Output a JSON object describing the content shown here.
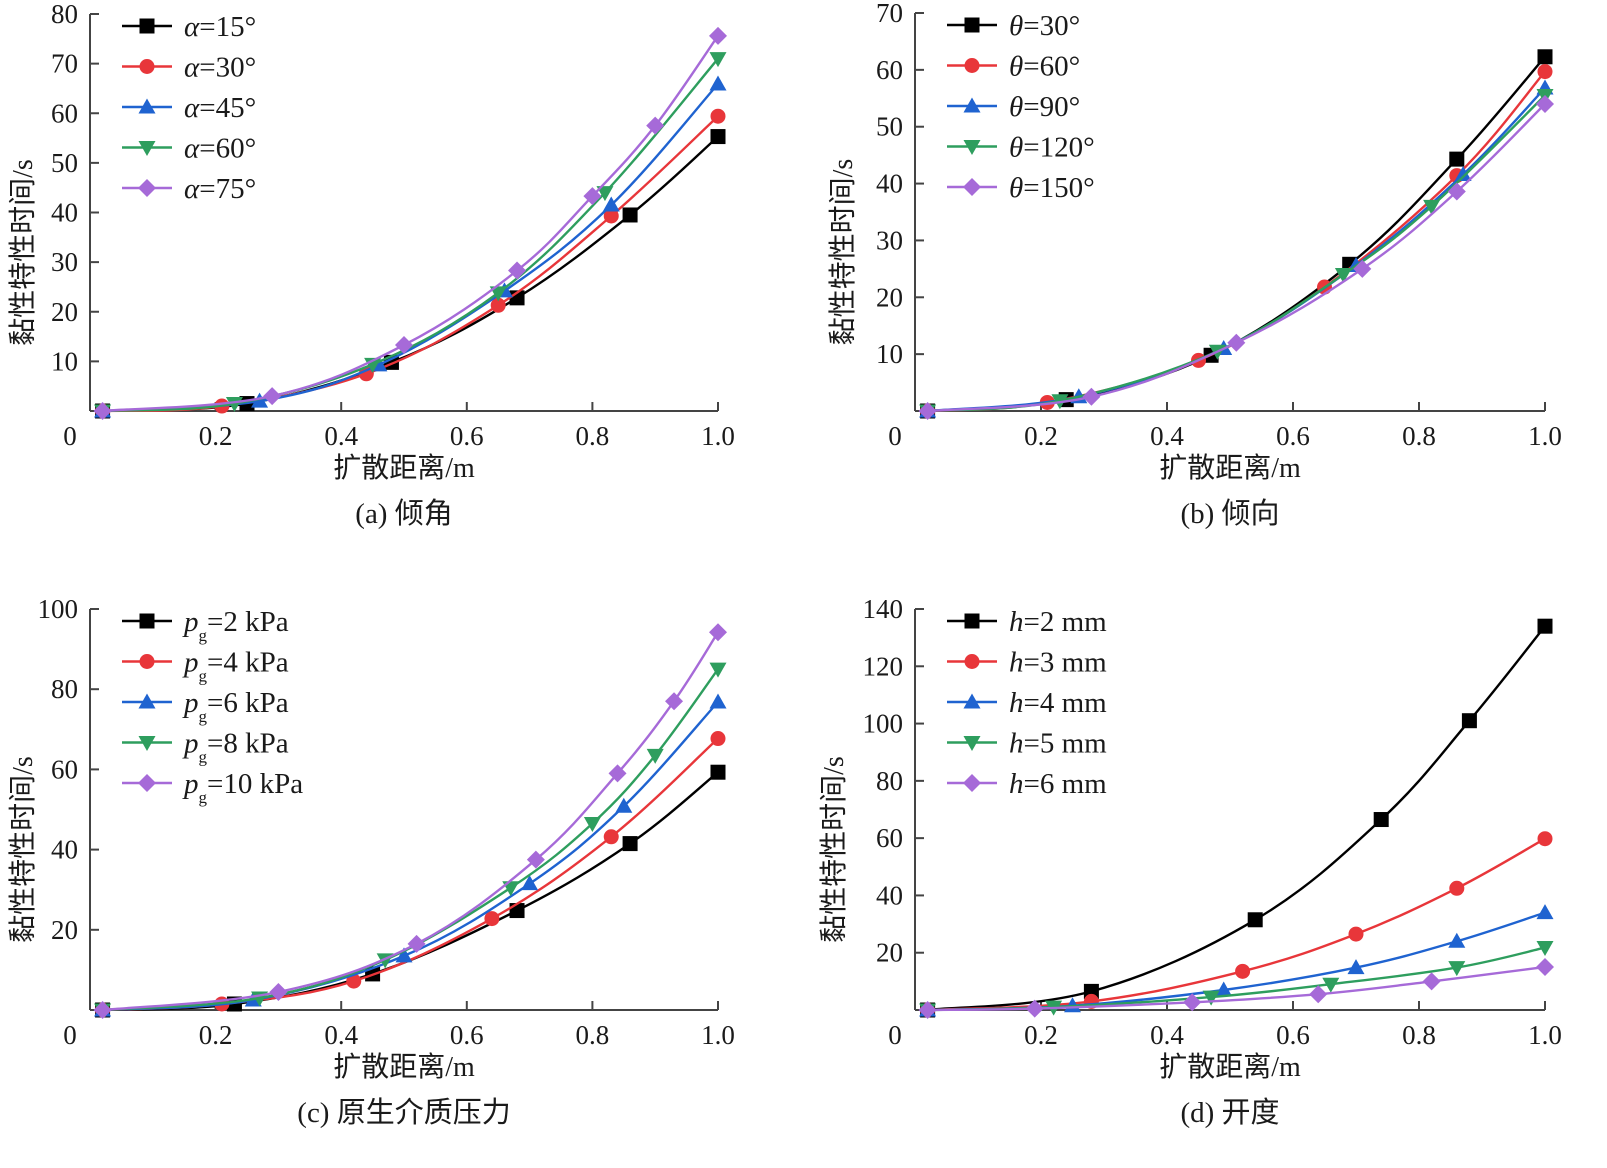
{
  "chart_data": [
    {
      "id": "a",
      "type": "line",
      "caption": "(a)  倾角",
      "xlabel": "扩散距离/m",
      "ylabel": "黏性特性时间/s",
      "xlim": [
        0,
        1.0
      ],
      "ylim": [
        0,
        80
      ],
      "xticks": [
        0,
        0.2,
        0.4,
        0.6,
        0.8,
        1.0
      ],
      "xtick_labels": [
        "0",
        "0.2",
        "0.4",
        "0.6",
        "0.8",
        "1.0"
      ],
      "yticks": [
        10,
        20,
        30,
        40,
        50,
        60,
        70,
        80
      ],
      "ytick_labels": [
        "10",
        "20",
        "30",
        "40",
        "50",
        "60",
        "70",
        "80"
      ],
      "grid": false,
      "legend_position": "top-left",
      "series": [
        {
          "name": "α=15°",
          "var": "α",
          "rest": "=15°",
          "sub": "",
          "color": "#000000",
          "marker": "square",
          "x": [
            0.02,
            0.25,
            0.48,
            0.68,
            0.86,
            1.0
          ],
          "y": [
            0,
            1.5,
            9.8,
            22.8,
            39.5,
            55.3
          ]
        },
        {
          "name": "α=30°",
          "var": "α",
          "rest": "=30°",
          "sub": "",
          "color": "#e8363a",
          "marker": "circle",
          "x": [
            0.02,
            0.21,
            0.44,
            0.65,
            0.83,
            1.0
          ],
          "y": [
            0,
            1.0,
            7.5,
            21.3,
            39.3,
            59.4
          ]
        },
        {
          "name": "α=45°",
          "var": "α",
          "rest": "=45°",
          "sub": "",
          "color": "#1f63d0",
          "marker": "triangle-up",
          "x": [
            0.02,
            0.27,
            0.46,
            0.66,
            0.83,
            1.0
          ],
          "y": [
            0,
            2.0,
            9.3,
            24.2,
            41.5,
            65.9
          ]
        },
        {
          "name": "α=60°",
          "var": "α",
          "rest": "=60°",
          "sub": "",
          "color": "#2e9e5e",
          "marker": "triangle-down",
          "x": [
            0.02,
            0.23,
            0.45,
            0.65,
            0.82,
            1.0
          ],
          "y": [
            0,
            1.5,
            9.4,
            23.8,
            44.0,
            71.0
          ]
        },
        {
          "name": "α=75°",
          "var": "α",
          "rest": "=75°",
          "sub": "",
          "color": "#a66ad8",
          "marker": "diamond",
          "x": [
            0.02,
            0.29,
            0.5,
            0.68,
            0.8,
            0.9,
            1.0
          ],
          "y": [
            0,
            3.0,
            13.3,
            28.3,
            43.3,
            57.5,
            75.6
          ]
        }
      ]
    },
    {
      "id": "b",
      "type": "line",
      "caption": "(b)  倾向",
      "xlabel": "扩散距离/m",
      "ylabel": "黏性特性时间/s",
      "xlim": [
        0,
        1.0
      ],
      "ylim": [
        0,
        70
      ],
      "xticks": [
        0,
        0.2,
        0.4,
        0.6,
        0.8,
        1.0
      ],
      "xtick_labels": [
        "0",
        "0.2",
        "0.4",
        "0.6",
        "0.8",
        "1.0"
      ],
      "yticks": [
        10,
        20,
        30,
        40,
        50,
        60,
        70
      ],
      "ytick_labels": [
        "10",
        "20",
        "30",
        "40",
        "50",
        "60",
        "70"
      ],
      "grid": false,
      "legend_position": "top-left",
      "series": [
        {
          "name": "θ=30°",
          "var": "θ",
          "rest": "=30°",
          "sub": "",
          "color": "#000000",
          "marker": "square",
          "x": [
            0.02,
            0.24,
            0.47,
            0.69,
            0.86,
            1.0
          ],
          "y": [
            0,
            2.0,
            9.8,
            25.8,
            44.3,
            62.3
          ]
        },
        {
          "name": "θ=60°",
          "var": "θ",
          "rest": "=60°",
          "sub": "",
          "color": "#e8363a",
          "marker": "circle",
          "x": [
            0.02,
            0.21,
            0.45,
            0.65,
            0.86,
            1.0
          ],
          "y": [
            0,
            1.5,
            8.9,
            21.8,
            41.4,
            59.7
          ]
        },
        {
          "name": "θ=90°",
          "var": "θ",
          "rest": "=90°",
          "sub": "",
          "color": "#1f63d0",
          "marker": "triangle-up",
          "x": [
            0.02,
            0.26,
            0.49,
            0.7,
            0.87,
            1.0
          ],
          "y": [
            0,
            2.5,
            11.0,
            25.6,
            41.6,
            56.8
          ]
        },
        {
          "name": "θ=120°",
          "var": "θ",
          "rest": "=120°",
          "sub": "",
          "color": "#2e9e5e",
          "marker": "triangle-down",
          "x": [
            0.02,
            0.23,
            0.48,
            0.68,
            0.82,
            1.0
          ],
          "y": [
            0,
            1.8,
            10.5,
            24.0,
            36.0,
            55.5
          ]
        },
        {
          "name": "θ=150°",
          "var": "θ",
          "rest": "=150°",
          "sub": "",
          "color": "#a66ad8",
          "marker": "diamond",
          "x": [
            0.02,
            0.28,
            0.51,
            0.71,
            0.86,
            1.0
          ],
          "y": [
            0,
            2.5,
            12.0,
            25.0,
            38.6,
            54.0
          ]
        }
      ]
    },
    {
      "id": "c",
      "type": "line",
      "caption": "(c)  原生介质压力",
      "xlabel": "扩散距离/m",
      "ylabel": "黏性特性时间/s",
      "xlim": [
        0,
        1.0
      ],
      "ylim": [
        0,
        100
      ],
      "xticks": [
        0,
        0.2,
        0.4,
        0.6,
        0.8,
        1.0
      ],
      "xtick_labels": [
        "0",
        "0.2",
        "0.4",
        "0.6",
        "0.8",
        "1.0"
      ],
      "yticks": [
        20,
        40,
        60,
        80,
        100
      ],
      "ytick_labels": [
        "20",
        "40",
        "60",
        "80",
        "100"
      ],
      "grid": false,
      "legend_position": "top-left",
      "series": [
        {
          "name": "pg=2 kPa",
          "var": "p",
          "sub": "g",
          "rest": "=2 kPa",
          "color": "#000000",
          "marker": "square",
          "x": [
            0.02,
            0.23,
            0.45,
            0.68,
            0.86,
            1.0
          ],
          "y": [
            0,
            1.5,
            9.0,
            24.8,
            41.5,
            59.3
          ]
        },
        {
          "name": "pg=4 kPa",
          "var": "p",
          "sub": "g",
          "rest": "=4 kPa",
          "color": "#e8363a",
          "marker": "circle",
          "x": [
            0.02,
            0.21,
            0.42,
            0.64,
            0.83,
            1.0
          ],
          "y": [
            0,
            1.5,
            7.2,
            22.8,
            43.2,
            67.7
          ]
        },
        {
          "name": "pg=6 kPa",
          "var": "p",
          "sub": "g",
          "rest": "=6 kPa",
          "color": "#1f63d0",
          "marker": "triangle-up",
          "x": [
            0.02,
            0.26,
            0.5,
            0.7,
            0.85,
            1.0
          ],
          "y": [
            0,
            2.5,
            13.5,
            31.5,
            50.8,
            76.8
          ]
        },
        {
          "name": "pg=8 kPa",
          "var": "p",
          "sub": "g",
          "rest": "=8 kPa",
          "color": "#2e9e5e",
          "marker": "triangle-down",
          "x": [
            0.02,
            0.27,
            0.47,
            0.67,
            0.8,
            0.9,
            1.0
          ],
          "y": [
            0,
            3.0,
            12.5,
            30.5,
            46.5,
            63.5,
            85.0
          ]
        },
        {
          "name": "pg=10 kPa",
          "var": "p",
          "sub": "g",
          "rest": "=10 kPa",
          "color": "#a66ad8",
          "marker": "diamond",
          "x": [
            0.02,
            0.3,
            0.52,
            0.71,
            0.84,
            0.93,
            1.0
          ],
          "y": [
            0,
            4.5,
            16.5,
            37.5,
            59.0,
            77.0,
            94.2
          ]
        }
      ]
    },
    {
      "id": "d",
      "type": "line",
      "caption": "(d)  开度",
      "xlabel": "扩散距离/m",
      "ylabel": "黏性特性时间/s",
      "xlim": [
        0,
        1.0
      ],
      "ylim": [
        0,
        140
      ],
      "xticks": [
        0,
        0.2,
        0.4,
        0.6,
        0.8,
        1.0
      ],
      "xtick_labels": [
        "0",
        "0.2",
        "0.4",
        "0.6",
        "0.8",
        "1.0"
      ],
      "yticks": [
        20,
        40,
        60,
        80,
        100,
        120,
        140
      ],
      "ytick_labels": [
        "20",
        "40",
        "60",
        "80",
        "100",
        "120",
        "140"
      ],
      "grid": false,
      "legend_position": "top-left",
      "series": [
        {
          "name": "h=2 mm",
          "var": "h",
          "sub": "",
          "rest": "=2 mm",
          "color": "#000000",
          "marker": "square",
          "x": [
            0.02,
            0.28,
            0.54,
            0.74,
            0.88,
            1.0
          ],
          "y": [
            0,
            6.5,
            31.5,
            66.5,
            101.0,
            134.0
          ]
        },
        {
          "name": "h=3 mm",
          "var": "h",
          "sub": "",
          "rest": "=3 mm",
          "color": "#e8363a",
          "marker": "circle",
          "x": [
            0.02,
            0.28,
            0.52,
            0.7,
            0.86,
            1.0
          ],
          "y": [
            0,
            3.0,
            13.5,
            26.5,
            42.5,
            59.8
          ]
        },
        {
          "name": "h=4 mm",
          "var": "h",
          "sub": "",
          "rest": "=4 mm",
          "color": "#1f63d0",
          "marker": "triangle-up",
          "x": [
            0.02,
            0.25,
            0.49,
            0.7,
            0.86,
            1.0
          ],
          "y": [
            0,
            1.5,
            7.0,
            14.8,
            24.0,
            34.0
          ]
        },
        {
          "name": "h=5 mm",
          "var": "h",
          "sub": "",
          "rest": "=5 mm",
          "color": "#2e9e5e",
          "marker": "triangle-down",
          "x": [
            0.02,
            0.22,
            0.47,
            0.66,
            0.86,
            1.0
          ],
          "y": [
            0,
            1.0,
            4.5,
            9.0,
            14.8,
            21.8
          ]
        },
        {
          "name": "h=6 mm",
          "var": "h",
          "sub": "",
          "rest": "=6 mm",
          "color": "#a66ad8",
          "marker": "diamond",
          "x": [
            0.02,
            0.19,
            0.44,
            0.64,
            0.82,
            1.0
          ],
          "y": [
            0,
            0.5,
            2.7,
            5.5,
            10.0,
            15.0
          ]
        }
      ]
    }
  ]
}
